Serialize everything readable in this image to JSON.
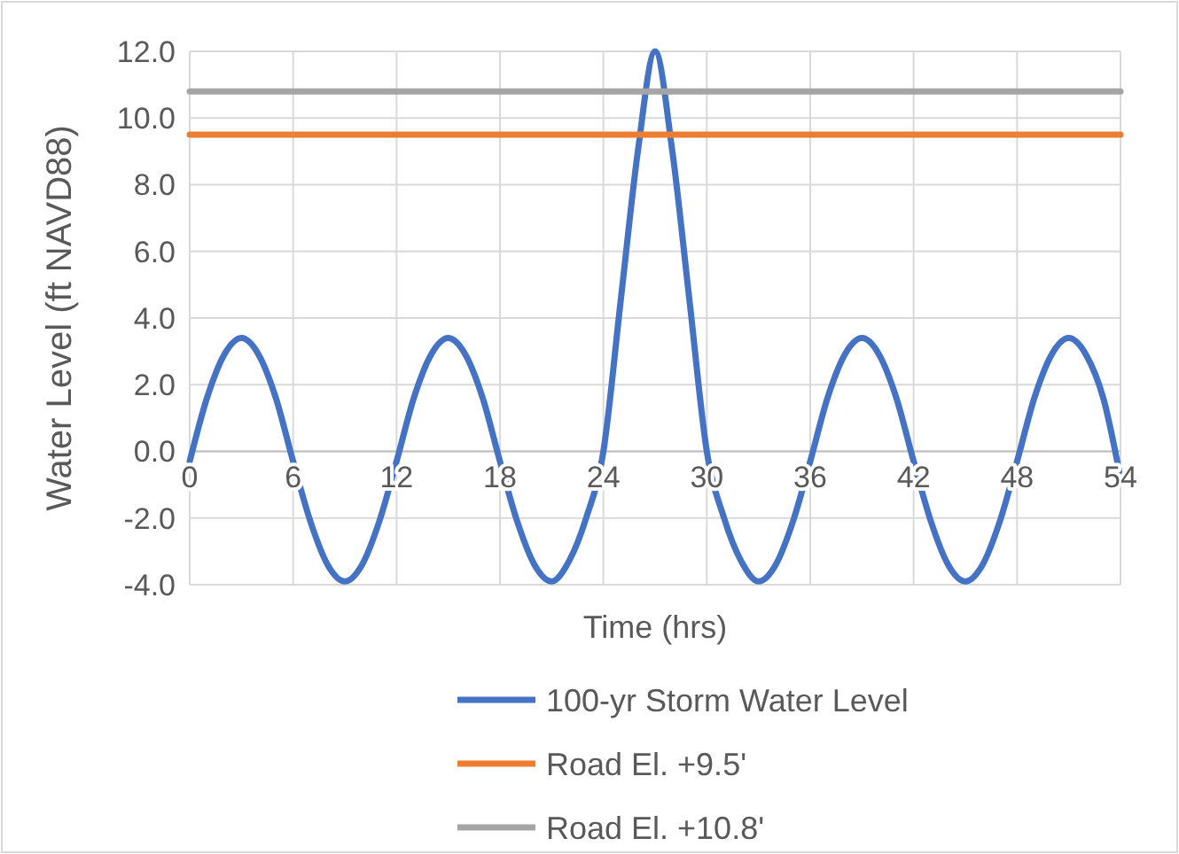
{
  "chart_data": {
    "type": "line",
    "xlabel": "Time (hrs)",
    "ylabel": "Water Level (ft NAVD88)",
    "xlim": [
      0,
      54
    ],
    "xticks": [
      0,
      6,
      12,
      18,
      24,
      30,
      36,
      42,
      48,
      54
    ],
    "ylim": [
      -4,
      12
    ],
    "yticks": [
      {
        "value": -4,
        "label": "-4.0"
      },
      {
        "value": -2,
        "label": "-2.0"
      },
      {
        "value": 0,
        "label": "0.0"
      },
      {
        "value": 2,
        "label": "2.0"
      },
      {
        "value": 4,
        "label": "4.0"
      },
      {
        "value": 6,
        "label": "6.0"
      },
      {
        "value": 8,
        "label": "8.0"
      },
      {
        "value": 10,
        "label": "10.0"
      },
      {
        "value": 12,
        "label": "12.0"
      }
    ],
    "grid": true,
    "legend": "bottom",
    "marker": "none",
    "line_style": "solid",
    "series": [
      {
        "name": "100-yr Storm Water Level",
        "color": "#4472c4",
        "x": [
          0,
          1,
          2,
          3,
          4,
          5,
          6,
          7,
          8,
          9,
          10,
          11,
          12,
          13,
          14,
          15,
          16,
          17,
          18,
          19,
          20,
          21,
          22,
          23,
          24,
          25,
          26,
          27,
          28,
          29,
          30,
          31,
          32,
          33,
          34,
          35,
          36,
          37,
          38,
          39,
          40,
          41,
          42,
          43,
          44,
          45,
          46,
          47,
          48,
          49,
          50,
          51,
          52,
          53,
          54
        ],
        "values": [
          -0.3,
          1.6,
          2.9,
          3.4,
          2.9,
          1.6,
          -0.3,
          -2.1,
          -3.4,
          -3.9,
          -3.4,
          -2.1,
          -0.3,
          1.6,
          2.9,
          3.4,
          2.9,
          1.6,
          -0.3,
          -2.1,
          -3.4,
          -3.9,
          -3.3,
          -2.0,
          0.0,
          4.5,
          9.0,
          12.0,
          9.0,
          4.5,
          0.0,
          -2.0,
          -3.3,
          -3.9,
          -3.4,
          -2.1,
          -0.3,
          1.6,
          2.9,
          3.4,
          2.9,
          1.6,
          -0.3,
          -2.1,
          -3.4,
          -3.9,
          -3.4,
          -2.1,
          -0.3,
          1.6,
          2.9,
          3.4,
          2.9,
          1.6,
          -0.8
        ]
      },
      {
        "name": "Road El. +9.5'",
        "color": "#ed7d31",
        "x": [
          0,
          54
        ],
        "values": [
          9.5,
          9.5
        ]
      },
      {
        "name": "Road El. +10.8'",
        "color": "#a5a5a5",
        "x": [
          0,
          54
        ],
        "values": [
          10.8,
          10.8
        ]
      }
    ]
  }
}
